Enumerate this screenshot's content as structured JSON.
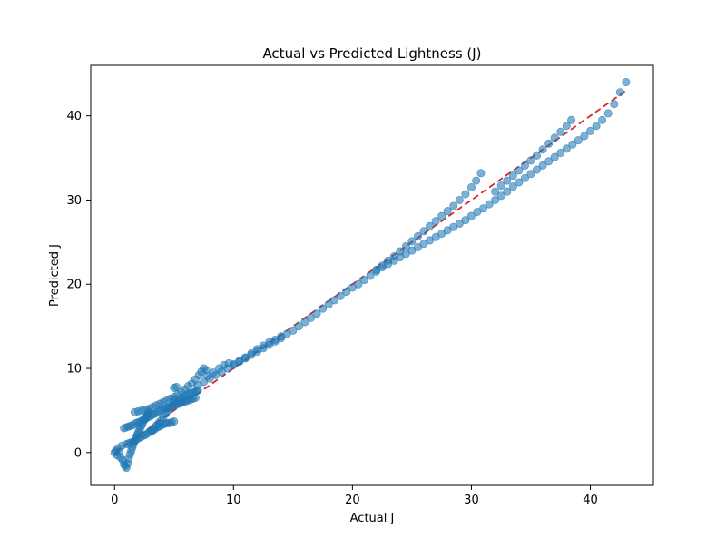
{
  "chart_data": {
    "type": "scatter",
    "title": "Actual vs Predicted Lightness (J)",
    "xlabel": "Actual J",
    "ylabel": "Predicted J",
    "xlim": [
      -2,
      45.3
    ],
    "ylim": [
      -3.9,
      46.0
    ],
    "xticks": [
      0,
      10,
      20,
      30,
      40
    ],
    "yticks": [
      0,
      10,
      20,
      30,
      40
    ],
    "grid": false,
    "legend": "none",
    "colors": {
      "points": "#1f77b4",
      "reference_line": "#d62728",
      "axes": "#000000"
    },
    "reference_line": {
      "style": "dashed",
      "x": [
        0,
        43
      ],
      "y": [
        0,
        43
      ]
    },
    "series": [
      {
        "values": [
          [
            0,
            0
          ],
          [
            0.1,
            0.2
          ],
          [
            0.2,
            -0.3
          ],
          [
            0.3,
            0.5
          ],
          [
            0.4,
            0.1
          ],
          [
            0.5,
            -0.6
          ],
          [
            0.6,
            0.8
          ],
          [
            0.7,
            -0.9
          ],
          [
            0.8,
            -1.4
          ],
          [
            0.9,
            -1.6
          ],
          [
            1.0,
            -1.8
          ],
          [
            1.1,
            -1.3
          ],
          [
            1.2,
            -0.7
          ],
          [
            1.3,
            -0.2
          ],
          [
            1.4,
            0.2
          ],
          [
            1.5,
            0.6
          ],
          [
            1.6,
            1.0
          ],
          [
            1.7,
            1.4
          ],
          [
            1.8,
            1.8
          ],
          [
            1.9,
            2.1
          ],
          [
            2.0,
            2.4
          ],
          [
            2.1,
            2.7
          ],
          [
            2.2,
            3.0
          ],
          [
            2.3,
            3.3
          ],
          [
            2.4,
            3.6
          ],
          [
            2.5,
            3.9
          ],
          [
            2.6,
            4.1
          ],
          [
            2.7,
            4.3
          ],
          [
            2.8,
            4.6
          ],
          [
            2.9,
            4.8
          ],
          [
            1.0,
            1.0
          ],
          [
            1.2,
            1.1
          ],
          [
            1.4,
            1.2
          ],
          [
            1.6,
            1.3
          ],
          [
            1.8,
            1.5
          ],
          [
            2.0,
            1.7
          ],
          [
            2.2,
            1.8
          ],
          [
            2.4,
            2.0
          ],
          [
            2.6,
            2.1
          ],
          [
            2.8,
            2.3
          ],
          [
            3.0,
            2.5
          ],
          [
            3.2,
            2.6
          ],
          [
            3.4,
            2.8
          ],
          [
            3.6,
            3.0
          ],
          [
            3.8,
            3.1
          ],
          [
            4.0,
            3.3
          ],
          [
            4.2,
            3.4
          ],
          [
            4.4,
            3.5
          ],
          [
            4.6,
            3.5
          ],
          [
            4.8,
            3.6
          ],
          [
            5.0,
            3.7
          ],
          [
            0.8,
            2.9
          ],
          [
            1.0,
            3.0
          ],
          [
            1.2,
            3.1
          ],
          [
            1.4,
            3.2
          ],
          [
            1.6,
            3.3
          ],
          [
            1.8,
            3.5
          ],
          [
            2.0,
            3.6
          ],
          [
            2.2,
            3.7
          ],
          [
            2.4,
            3.9
          ],
          [
            2.6,
            4.0
          ],
          [
            2.8,
            4.2
          ],
          [
            3.0,
            4.3
          ],
          [
            3.2,
            4.5
          ],
          [
            3.4,
            4.6
          ],
          [
            3.6,
            4.8
          ],
          [
            3.8,
            5.0
          ],
          [
            4.0,
            5.1
          ],
          [
            4.2,
            5.2
          ],
          [
            4.4,
            5.3
          ],
          [
            4.6,
            5.4
          ],
          [
            4.8,
            5.5
          ],
          [
            5.0,
            5.6
          ],
          [
            5.2,
            5.7
          ],
          [
            5.4,
            5.8
          ],
          [
            5.6,
            5.9
          ],
          [
            5.8,
            6.0
          ],
          [
            6.0,
            6.1
          ],
          [
            6.2,
            6.2
          ],
          [
            6.4,
            6.3
          ],
          [
            6.6,
            6.4
          ],
          [
            6.8,
            6.5
          ],
          [
            1.7,
            4.8
          ],
          [
            2.0,
            4.9
          ],
          [
            2.3,
            5.0
          ],
          [
            2.6,
            5.1
          ],
          [
            2.9,
            5.2
          ],
          [
            3.2,
            5.4
          ],
          [
            3.5,
            5.6
          ],
          [
            3.8,
            5.8
          ],
          [
            4.1,
            6.0
          ],
          [
            4.4,
            6.2
          ],
          [
            4.7,
            6.4
          ],
          [
            5.0,
            6.6
          ],
          [
            5.3,
            6.9
          ],
          [
            5.6,
            7.2
          ],
          [
            5.9,
            7.5
          ],
          [
            6.2,
            7.9
          ],
          [
            6.5,
            8.2
          ],
          [
            6.8,
            8.7
          ],
          [
            7.1,
            9.2
          ],
          [
            7.3,
            9.6
          ],
          [
            7.5,
            10.0
          ],
          [
            7.7,
            9.8
          ],
          [
            5.0,
            6.2
          ],
          [
            5.2,
            7.8
          ],
          [
            3.1,
            2.6
          ],
          [
            3.3,
            2.9
          ],
          [
            3.5,
            3.2
          ],
          [
            3.7,
            3.5
          ],
          [
            3.9,
            3.8
          ],
          [
            4.1,
            4.2
          ],
          [
            4.3,
            4.6
          ],
          [
            4.5,
            5.0
          ],
          [
            4.7,
            5.3
          ],
          [
            4.9,
            5.6
          ],
          [
            5.1,
            5.9
          ],
          [
            5.3,
            6.1
          ],
          [
            5.5,
            6.3
          ],
          [
            5.7,
            6.5
          ],
          [
            5.9,
            6.7
          ],
          [
            6.1,
            6.9
          ],
          [
            6.3,
            7.0
          ],
          [
            6.5,
            7.1
          ],
          [
            6.7,
            7.2
          ],
          [
            6.9,
            7.3
          ],
          [
            7.0,
            7.4
          ],
          [
            7.0,
            8.0
          ],
          [
            7.5,
            8.4
          ],
          [
            8.0,
            8.8
          ],
          [
            8.5,
            9.2
          ],
          [
            9.0,
            9.6
          ],
          [
            9.5,
            10.0
          ],
          [
            10.0,
            10.4
          ],
          [
            10.5,
            10.8
          ],
          [
            11.0,
            11.2
          ],
          [
            11.5,
            11.6
          ],
          [
            12.0,
            12.0
          ],
          [
            12.5,
            12.4
          ],
          [
            13.0,
            12.8
          ],
          [
            13.5,
            13.2
          ],
          [
            14.0,
            13.6
          ],
          [
            14.5,
            14.1
          ],
          [
            15.0,
            14.5
          ],
          [
            15.5,
            15.0
          ],
          [
            16.0,
            15.5
          ],
          [
            16.5,
            16.0
          ],
          [
            17.0,
            16.5
          ],
          [
            17.5,
            17.1
          ],
          [
            18.0,
            17.6
          ],
          [
            18.5,
            18.1
          ],
          [
            19.0,
            18.6
          ],
          [
            19.5,
            19.1
          ],
          [
            20.0,
            19.6
          ],
          [
            20.5,
            20.0
          ],
          [
            21.0,
            20.5
          ],
          [
            21.5,
            21.0
          ],
          [
            22.0,
            21.5
          ],
          [
            22.5,
            22.0
          ],
          [
            23.0,
            22.4
          ],
          [
            23.5,
            22.8
          ],
          [
            24.0,
            23.2
          ],
          [
            24.5,
            23.6
          ],
          [
            25.0,
            24.0
          ],
          [
            25.5,
            24.4
          ],
          [
            26.0,
            24.8
          ],
          [
            26.5,
            25.2
          ],
          [
            27.0,
            25.6
          ],
          [
            27.5,
            26.0
          ],
          [
            28.0,
            26.4
          ],
          [
            28.5,
            26.8
          ],
          [
            29.0,
            27.2
          ],
          [
            29.5,
            27.6
          ],
          [
            30.0,
            28.1
          ],
          [
            30.5,
            28.6
          ],
          [
            31.0,
            29.0
          ],
          [
            31.5,
            29.5
          ],
          [
            32.0,
            30.0
          ],
          [
            32.5,
            30.5
          ],
          [
            33.0,
            31.0
          ],
          [
            33.5,
            31.6
          ],
          [
            34.0,
            32.1
          ],
          [
            34.5,
            32.6
          ],
          [
            35.0,
            33.1
          ],
          [
            35.5,
            33.6
          ],
          [
            36.0,
            34.1
          ],
          [
            36.5,
            34.6
          ],
          [
            37.0,
            35.1
          ],
          [
            37.5,
            35.6
          ],
          [
            38.0,
            36.1
          ],
          [
            38.5,
            36.6
          ],
          [
            39.0,
            37.1
          ],
          [
            39.5,
            37.6
          ],
          [
            40.0,
            38.2
          ],
          [
            40.5,
            38.8
          ],
          [
            41.0,
            39.5
          ],
          [
            41.5,
            40.3
          ],
          [
            42.0,
            41.4
          ],
          [
            42.5,
            42.8
          ],
          [
            43.0,
            44.0
          ],
          [
            22.0,
            21.7
          ],
          [
            22.5,
            22.2
          ],
          [
            23.0,
            22.8
          ],
          [
            23.5,
            23.3
          ],
          [
            24.0,
            23.9
          ],
          [
            24.5,
            24.5
          ],
          [
            25.0,
            25.1
          ],
          [
            25.5,
            25.7
          ],
          [
            26.0,
            26.3
          ],
          [
            26.5,
            26.9
          ],
          [
            27.0,
            27.5
          ],
          [
            27.5,
            28.1
          ],
          [
            28.0,
            28.7
          ],
          [
            28.5,
            29.3
          ],
          [
            29.0,
            30.0
          ],
          [
            29.5,
            30.7
          ],
          [
            30.0,
            31.5
          ],
          [
            30.4,
            32.3
          ],
          [
            30.8,
            33.2
          ],
          [
            32.0,
            31.0
          ],
          [
            32.5,
            31.7
          ],
          [
            33.0,
            32.3
          ],
          [
            33.5,
            32.9
          ],
          [
            34.0,
            33.5
          ],
          [
            34.5,
            34.1
          ],
          [
            35.0,
            34.7
          ],
          [
            35.5,
            35.3
          ],
          [
            36.0,
            36.0
          ],
          [
            36.5,
            36.7
          ],
          [
            37.0,
            37.4
          ],
          [
            37.5,
            38.1
          ],
          [
            38.0,
            38.8
          ],
          [
            38.4,
            39.5
          ],
          [
            10.0,
            10.5
          ],
          [
            10.5,
            10.9
          ],
          [
            11.0,
            11.3
          ],
          [
            11.5,
            11.8
          ],
          [
            12.0,
            12.3
          ],
          [
            12.5,
            12.7
          ],
          [
            13.0,
            13.1
          ],
          [
            13.5,
            13.4
          ],
          [
            14.0,
            13.8
          ],
          [
            7.8,
            9.1
          ],
          [
            8.3,
            9.5
          ],
          [
            8.8,
            10.0
          ],
          [
            9.2,
            10.4
          ],
          [
            9.6,
            10.6
          ],
          [
            5.0,
            7.7
          ]
        ]
      }
    ]
  }
}
